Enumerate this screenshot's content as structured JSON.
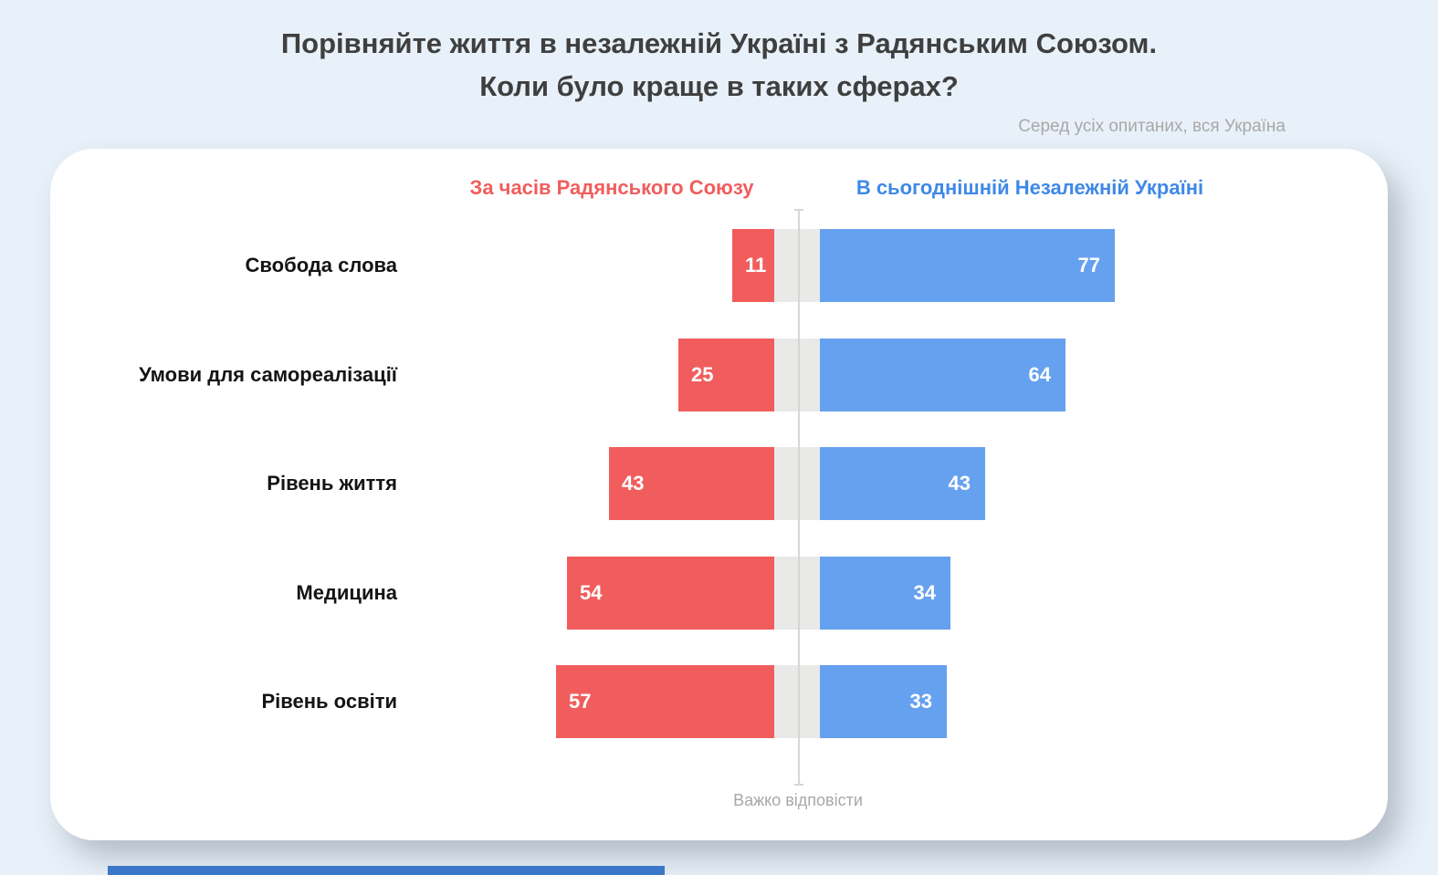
{
  "title": {
    "line1": "Порівняйте життя в незалежній Україні з Радянським Союзом.",
    "line2": "Коли було краще в таких сферах?"
  },
  "subtitle": "Серед усіх опитаних, вся Україна",
  "chart_data": {
    "type": "bar",
    "variant": "diverging-horizontal",
    "categories": [
      "Свобода слова",
      "Умови для самореалізації",
      "Рівень життя",
      "Медицина",
      "Рівень освіти"
    ],
    "series": [
      {
        "name": "За часів Радянського Союзу",
        "color": "#F15D5D",
        "values": [
          11,
          25,
          43,
          54,
          57
        ]
      },
      {
        "name": "В сьогоднішній Незалежній Україні",
        "color": "#66A1EF",
        "values": [
          77,
          64,
          43,
          34,
          33
        ]
      }
    ],
    "center_label": "Важко відповісти",
    "xlim": [
      0,
      100
    ],
    "legend_position": "top",
    "grid": false,
    "value_labels": "inside-outer-end"
  },
  "colors": {
    "soviet_bar": "#F15D5D",
    "ukraine_bar": "#66A1EF",
    "legend_soviet_text": "#F15D5D",
    "legend_ukraine_text": "#3F88E8",
    "page_background": "#E8F1F9",
    "card_background": "#FFFFFF",
    "center_gap": "#E9E9E7",
    "axis_line": "#D6D6D6"
  }
}
